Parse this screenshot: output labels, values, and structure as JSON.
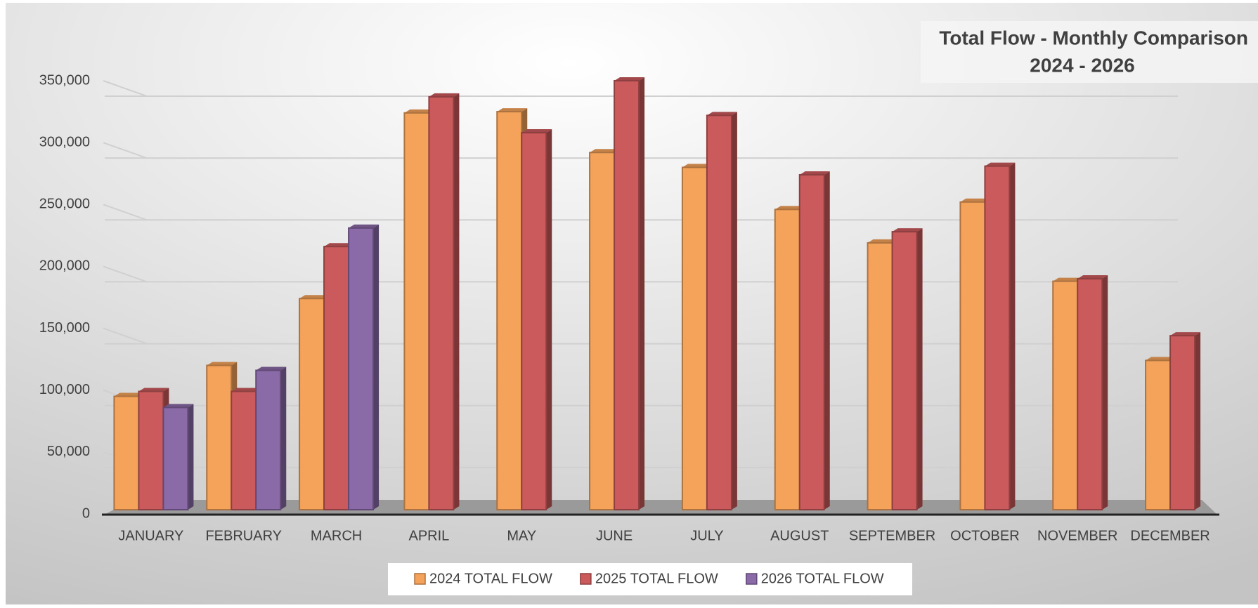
{
  "chart_data": {
    "type": "bar",
    "title": "Total Flow - Monthly Comparison",
    "subtitle": "2024 - 2026",
    "categories": [
      "JANUARY",
      "FEBRUARY",
      "MARCH",
      "APRIL",
      "MAY",
      "JUNE",
      "JULY",
      "AUGUST",
      "SEPTEMBER",
      "OCTOBER",
      "NOVEMBER",
      "DECEMBER"
    ],
    "series": [
      {
        "name": "2024 TOTAL FLOW",
        "color": "#f5a35a",
        "values": [
          95000,
          120000,
          174000,
          324000,
          325000,
          292000,
          280000,
          246000,
          219000,
          252000,
          188000,
          124000
        ]
      },
      {
        "name": "2025 TOTAL FLOW",
        "color": "#cb5a5c",
        "values": [
          99000,
          99000,
          216000,
          337000,
          308000,
          350000,
          322000,
          274000,
          228000,
          281000,
          190000,
          144000
        ]
      },
      {
        "name": "2026 TOTAL FLOW",
        "color": "#8b6aa8",
        "values": [
          86000,
          116000,
          231000,
          null,
          null,
          null,
          null,
          null,
          null,
          null,
          null,
          null
        ]
      }
    ],
    "ylim": [
      0,
      350000
    ],
    "yticks": [
      0,
      {
        "value": 50000,
        "label": "50,000"
      },
      {
        "value": 100000,
        "label": "100,000"
      },
      {
        "value": 150000,
        "label": "150,000"
      },
      {
        "value": 200000,
        "label": "200,000"
      },
      {
        "value": 250000,
        "label": "250,000"
      },
      {
        "value": 300000,
        "label": "300,000"
      },
      {
        "value": 350000,
        "label": "350,000"
      }
    ],
    "grid": true,
    "legend": "bottom"
  }
}
